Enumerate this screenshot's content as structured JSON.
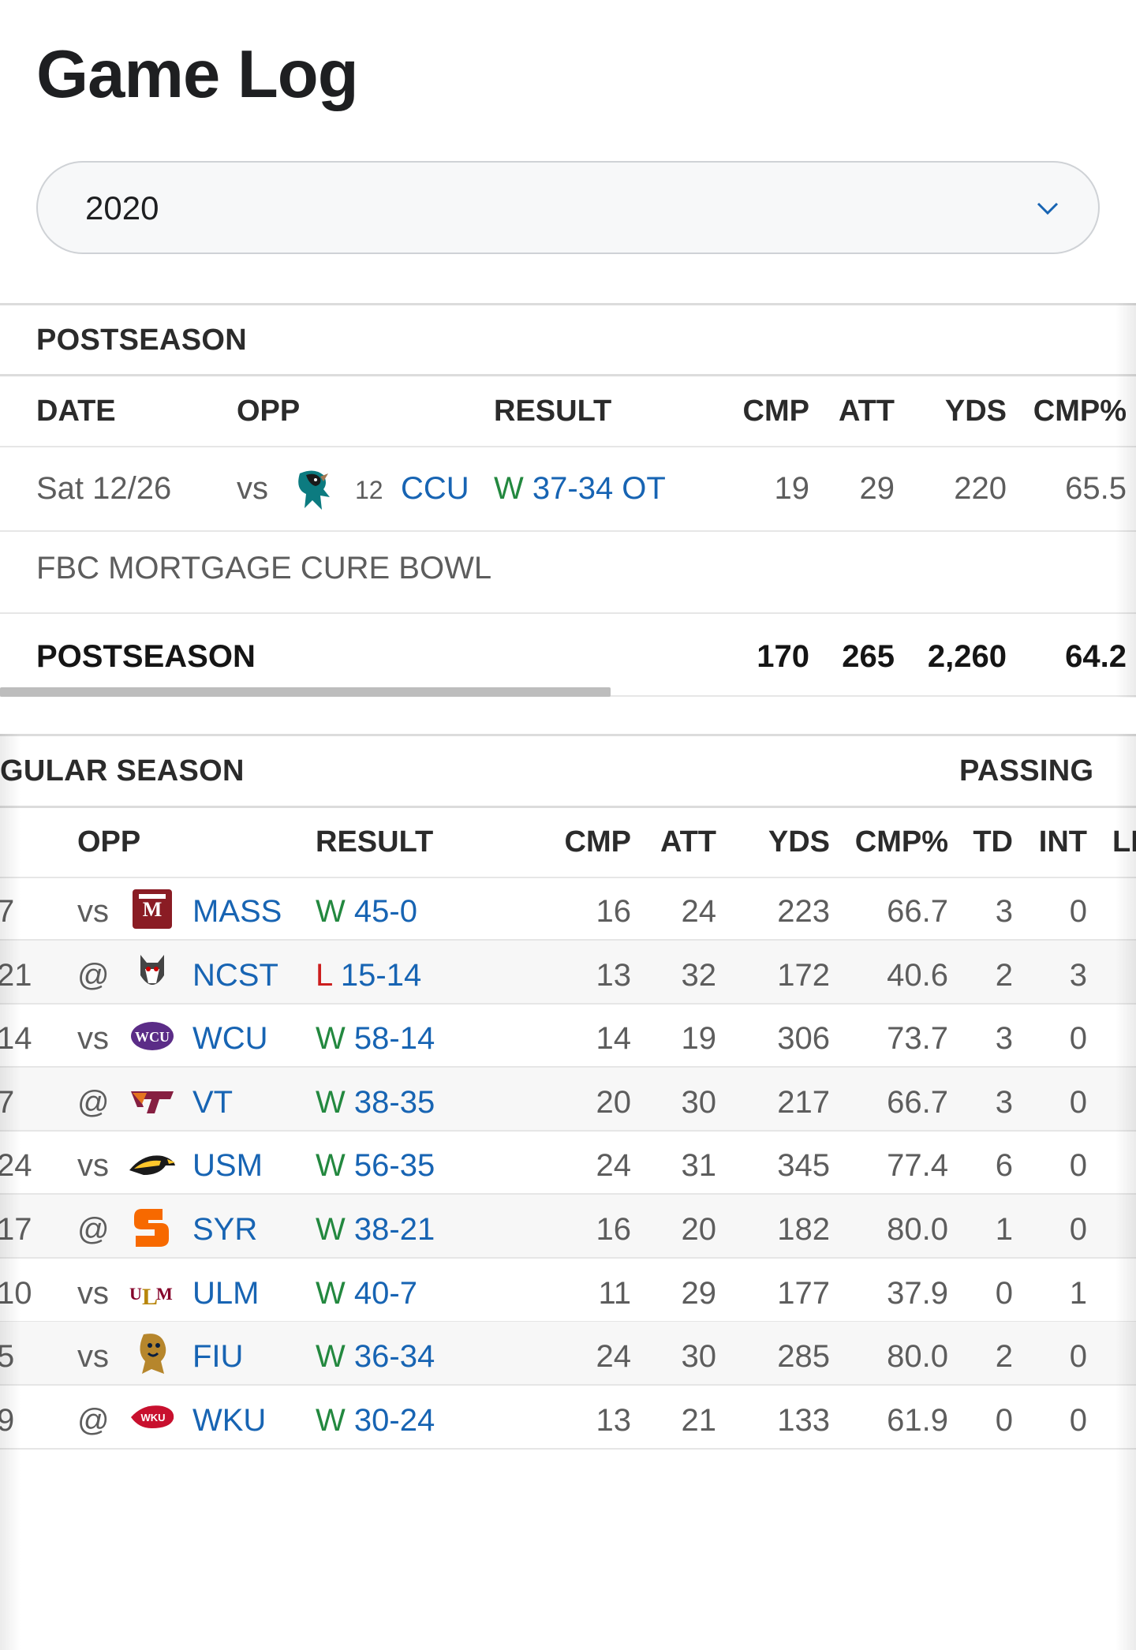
{
  "page": {
    "title": "Game Log"
  },
  "season_select": {
    "value": "2020"
  },
  "postseason": {
    "label": "POSTSEASON",
    "headers": [
      "DATE",
      "OPP",
      "RESULT",
      "CMP",
      "ATT",
      "YDS",
      "CMP%"
    ],
    "game": {
      "date": "Sat 12/26",
      "loc": "vs",
      "rank": "12",
      "opp": "CCU",
      "res_letter": "W",
      "score": "37-34 OT",
      "cmp": "19",
      "att": "29",
      "yds": "220",
      "pct": "65.5"
    },
    "bowl": "FBC MORTGAGE CURE BOWL",
    "total": {
      "label": "POSTSEASON",
      "cmp": "170",
      "att": "265",
      "yds": "2,260",
      "pct": "64.2"
    }
  },
  "regular": {
    "label": "GULAR SEASON",
    "group": "PASSING",
    "headers": [
      "OPP",
      "RESULT",
      "CMP",
      "ATT",
      "YDS",
      "CMP%",
      "TD",
      "INT",
      "LI"
    ],
    "rows": [
      {
        "date": "7",
        "loc": "vs",
        "opp": "MASS",
        "res": "W",
        "score": "45-0",
        "cmp": "16",
        "att": "24",
        "yds": "223",
        "pct": "66.7",
        "td": "3",
        "int": "0",
        "logo": "umass-logo"
      },
      {
        "date": "21",
        "loc": "@",
        "opp": "NCST",
        "res": "L",
        "score": "15-14",
        "cmp": "13",
        "att": "32",
        "yds": "172",
        "pct": "40.6",
        "td": "2",
        "int": "3",
        "logo": "nc-state-wolf-logo"
      },
      {
        "date": "14",
        "loc": "vs",
        "opp": "WCU",
        "res": "W",
        "score": "58-14",
        "cmp": "14",
        "att": "19",
        "yds": "306",
        "pct": "73.7",
        "td": "3",
        "int": "0",
        "logo": "wcu-logo"
      },
      {
        "date": "7",
        "loc": "@",
        "opp": "VT",
        "res": "W",
        "score": "38-35",
        "cmp": "20",
        "att": "30",
        "yds": "217",
        "pct": "66.7",
        "td": "3",
        "int": "0",
        "logo": "vt-logo"
      },
      {
        "date": "24",
        "loc": "vs",
        "opp": "USM",
        "res": "W",
        "score": "56-35",
        "cmp": "24",
        "att": "31",
        "yds": "345",
        "pct": "77.4",
        "td": "6",
        "int": "0",
        "logo": "golden-eagle-logo"
      },
      {
        "date": "17",
        "loc": "@",
        "opp": "SYR",
        "res": "W",
        "score": "38-21",
        "cmp": "16",
        "att": "20",
        "yds": "182",
        "pct": "80.0",
        "td": "1",
        "int": "0",
        "logo": "syracuse-logo"
      },
      {
        "date": "10",
        "loc": "vs",
        "opp": "ULM",
        "res": "W",
        "score": "40-7",
        "cmp": "11",
        "att": "29",
        "yds": "177",
        "pct": "37.9",
        "td": "0",
        "int": "1",
        "logo": "ulm-logo"
      },
      {
        "date": "5",
        "loc": "vs",
        "opp": "FIU",
        "res": "W",
        "score": "36-34",
        "cmp": "24",
        "att": "30",
        "yds": "285",
        "pct": "80.0",
        "td": "2",
        "int": "0",
        "logo": "fiu-panther-logo"
      },
      {
        "date": "9",
        "loc": "@",
        "opp": "WKU",
        "res": "W",
        "score": "30-24",
        "cmp": "13",
        "att": "21",
        "yds": "133",
        "pct": "61.9",
        "td": "0",
        "int": "0",
        "logo": "wku-logo"
      }
    ]
  },
  "colors": {
    "link": "#1764b3",
    "win": "#23883f",
    "loss": "#cc1e1e",
    "text": "#5d5d5d"
  }
}
